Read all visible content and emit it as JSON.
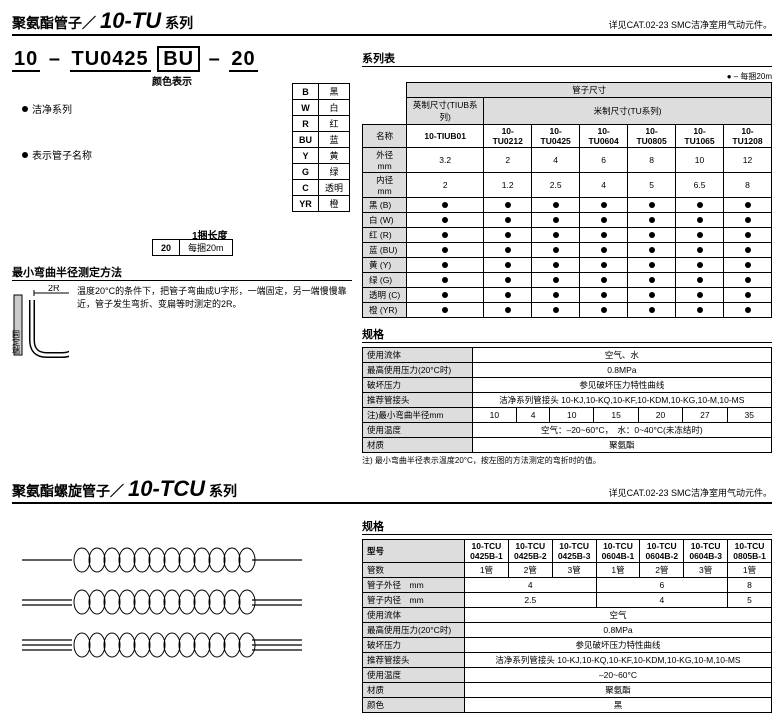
{
  "tu": {
    "title_main": "聚氨酯管子／",
    "series": "10-TU",
    "suffix": "系列",
    "note": "详见CAT.02-23 SMC洁净室用气动元件。",
    "partno": {
      "p1": "10",
      "dash1": "–",
      "p2": "TU0425",
      "p3": "BU",
      "dash2": "–",
      "p4": "20"
    },
    "labels": {
      "clean": "洁净系列",
      "tubename": "表示管子名称",
      "colorhdr": "颜色表示",
      "lengthhdr": "1捆长度"
    },
    "colors": [
      [
        "B",
        "黑"
      ],
      [
        "W",
        "白"
      ],
      [
        "R",
        "红"
      ],
      [
        "BU",
        "蓝"
      ],
      [
        "Y",
        "黄"
      ],
      [
        "G",
        "绿"
      ],
      [
        "C",
        "透明"
      ],
      [
        "YR",
        "橙"
      ]
    ],
    "length": {
      "code": "20",
      "desc": "每捆20m"
    },
    "method_title": "最小弯曲半径测定方法",
    "method_text": "温度20°C的条件下，把管子弯曲成U字形，一端固定，另一端慢慢靠近，管子发生弯折、变扁等时测定的2R。",
    "fixed_end": "固定端",
    "r_label": "2R",
    "series_header": "系列表",
    "legend": "● – 每捆20m",
    "series_cols": {
      "size_hdr": "管子尺寸",
      "inch_hdr": "英制尺寸(TIUB系列)",
      "metric_hdr": "米制尺寸(TU系列)",
      "name": "名称",
      "od": "外径　mm",
      "id": "内径　mm",
      "models": [
        "10-TIUB01",
        "10-TU0212",
        "10-TU0425",
        "10-TU0604",
        "10-TU0805",
        "10-TU1065",
        "10-TU1208"
      ],
      "od_vals": [
        "3.2",
        "2",
        "4",
        "6",
        "8",
        "10",
        "12"
      ],
      "id_vals": [
        "2",
        "1.2",
        "2.5",
        "4",
        "5",
        "6.5",
        "8"
      ]
    },
    "color_rows": [
      "黑 (B)",
      "白 (W)",
      "红 (R)",
      "蓝 (BU)",
      "黄 (Y)",
      "绿 (G)",
      "透明 (C)",
      "橙 (YR)"
    ],
    "spec_header": "规格",
    "spec": {
      "fluid_l": "使用流体",
      "fluid_v": "空气、水",
      "press_l": "最高使用压力(20°C时)",
      "press_v": "0.8MPa",
      "burst_l": "破坏压力",
      "burst_v": "参见破坏压力特性曲线",
      "fitting_l": "推荐管接头",
      "fitting_v": "洁净系列管接头 10-KJ,10-KQ,10-KF,10-KDM,10-KG,10-M,10-MS",
      "bend_l": "注)最小弯曲半径mm",
      "bend_vals": [
        "10",
        "4",
        "10",
        "15",
        "20",
        "27",
        "35"
      ],
      "temp_l": "使用温度",
      "temp_v": "空气：–20~60°C，　水：0~40°C(未冻结时)",
      "mat_l": "材质",
      "mat_v": "聚氨酯"
    },
    "spec_note": "注) 最小弯曲半径表示温度20°C，按左图的方法测定的弯折时的值。"
  },
  "tcu": {
    "title_main": "聚氨酯螺旋管子／",
    "series": "10-TCU",
    "suffix": "系列",
    "note": "详见CAT.02-23 SMC洁净室用气动元件。",
    "spec_header": "规格",
    "models_l": "型号",
    "models": [
      "10-TCU 0425B-1",
      "10-TCU 0425B-2",
      "10-TCU 0425B-3",
      "10-TCU 0604B-1",
      "10-TCU 0604B-2",
      "10-TCU 0604B-3",
      "10-TCU 0805B-1"
    ],
    "tubes_l": "管数",
    "tubes": [
      "1管",
      "2管",
      "3管",
      "1管",
      "2管",
      "3管",
      "1管"
    ],
    "od_l": "管子外径　mm",
    "od_vals": [
      "4",
      "6",
      "8"
    ],
    "od_spans": [
      3,
      3,
      1
    ],
    "id_l": "管子内径　mm",
    "id_vals": [
      "2.5",
      "4",
      "5"
    ],
    "id_spans": [
      3,
      3,
      1
    ],
    "fluid_l": "使用流体",
    "fluid_v": "空气",
    "press_l": "最高使用压力(20°C时)",
    "press_v": "0.8MPa",
    "burst_l": "破坏压力",
    "burst_v": "参见破坏压力特性曲线",
    "fitting_l": "推荐管接头",
    "fitting_v": "洁净系列管接头 10-KJ,10-KQ,10-KF,10-KDM,10-KG,10-M,10-MS",
    "temp_l": "使用温度",
    "temp_v": "–20~60°C",
    "mat_l": "材质",
    "mat_v": "聚氨酯",
    "color_l": "颜色",
    "color_v": "黑"
  }
}
